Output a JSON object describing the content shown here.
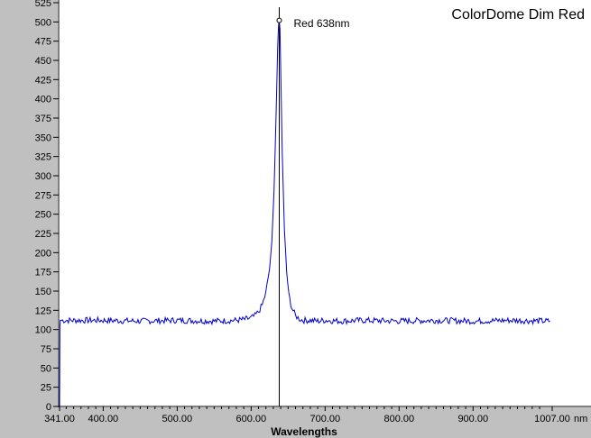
{
  "chart_data": {
    "type": "line",
    "title": "ColorDome Dim Red",
    "xlabel": "Wavelengths",
    "x_unit": "nm",
    "ylabel": "",
    "xlim": [
      341.0,
      1007.0
    ],
    "ylim": [
      0,
      525
    ],
    "x_tick_labels": [
      "341.00",
      "400.00",
      "500.00",
      "600.00",
      "700.00",
      "800.00",
      "900.00",
      "1007.00"
    ],
    "x_tick_values": [
      341,
      400,
      500,
      600,
      700,
      800,
      900,
      1007
    ],
    "y_ticks": [
      0,
      25,
      50,
      75,
      100,
      125,
      150,
      175,
      200,
      225,
      250,
      275,
      300,
      325,
      350,
      375,
      400,
      425,
      450,
      475,
      500,
      525
    ],
    "series": [
      {
        "color": "#0000cc",
        "x": [
          341,
          341.5,
          342,
          350,
          400,
          450,
          500,
          550,
          580,
          590,
          600,
          605,
          610,
          615,
          620,
          625,
          628,
          631,
          634,
          636,
          637,
          638,
          639,
          640,
          642,
          645,
          648,
          651,
          655,
          660,
          665,
          670,
          680,
          690,
          700,
          720,
          750,
          800,
          850,
          900,
          950,
          1000,
          1004
        ],
        "y": [
          0,
          105,
          112,
          112,
          112,
          111,
          112,
          111,
          112,
          113,
          115,
          118,
          123,
          132,
          148,
          180,
          215,
          280,
          390,
          470,
          495,
          502,
          490,
          440,
          330,
          230,
          175,
          145,
          128,
          118,
          114,
          112,
          112,
          111,
          112,
          111,
          112,
          111,
          112,
          111,
          112,
          111,
          111
        ]
      }
    ],
    "marker": {
      "x": 638,
      "y": 502,
      "label": "Red 638nm"
    },
    "grid": false,
    "colors": {
      "line": "#0000cc",
      "left_panel": "#c0c0c0",
      "marker_line": "#000000"
    }
  }
}
